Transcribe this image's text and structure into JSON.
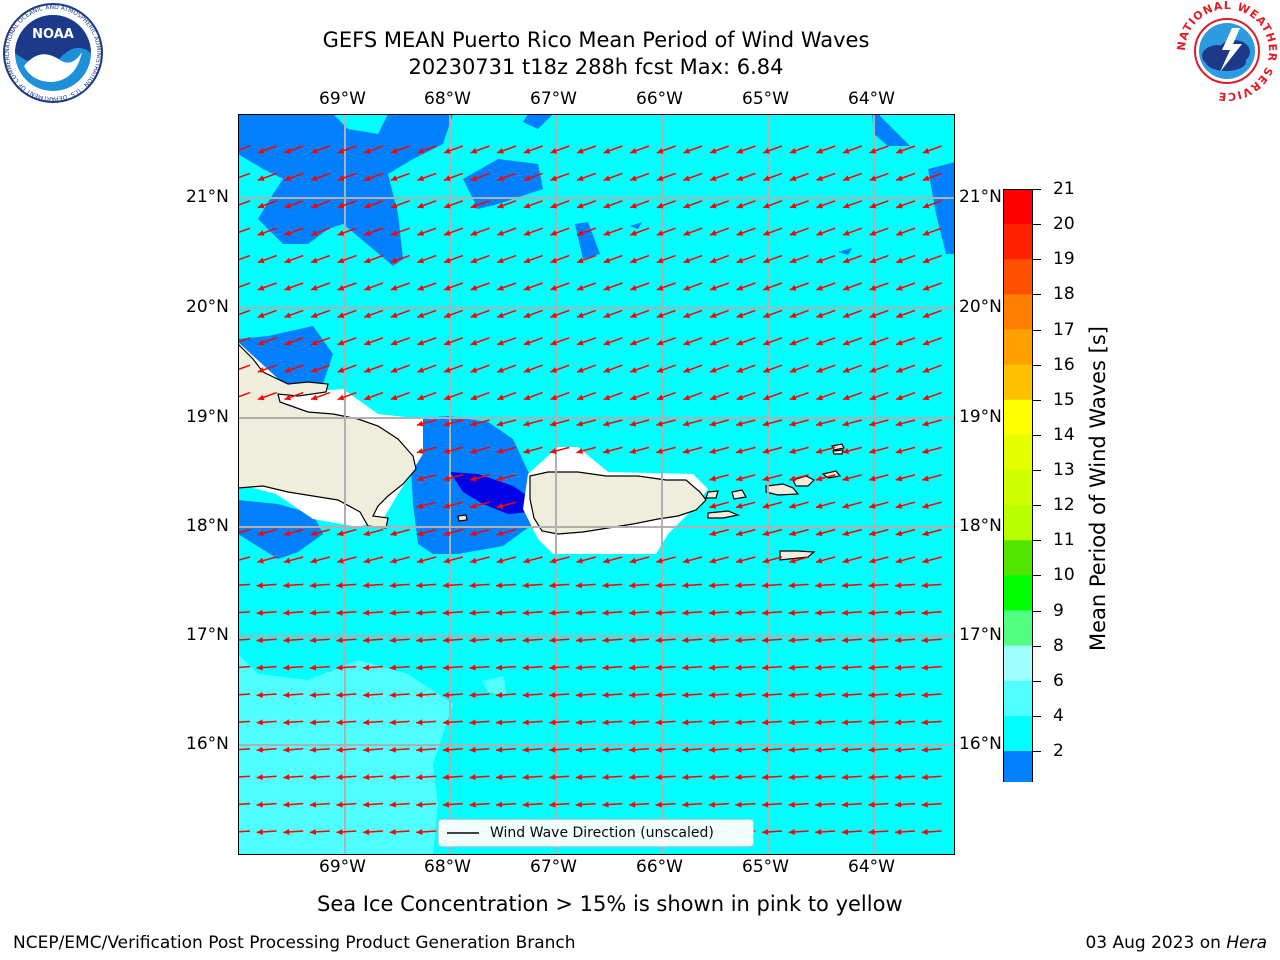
{
  "title": {
    "line1": "GEFS MEAN Puerto Rico Mean Period of Wind Waves",
    "line2": "20230731 t18z 288h fcst   Max: 6.84"
  },
  "map": {
    "lon_labels": [
      "69°W",
      "68°W",
      "67°W",
      "66°W",
      "65°W",
      "64°W"
    ],
    "lat_labels": [
      "21°N",
      "20°N",
      "19°N",
      "18°N",
      "17°N",
      "16°N"
    ],
    "legend": "Wind Wave Direction (unscaled)",
    "colors": {
      "ocean": "#00ffff",
      "band_2_4": "#0080ff",
      "band_below_2": "#0000e6",
      "band_6_8": "#50ffff",
      "land": "#efeedc",
      "arrow": "#ff0000"
    }
  },
  "colorbar": {
    "title": "Mean Period of Wind Waves [s]",
    "labels": [
      "21",
      "20",
      "19",
      "18",
      "17",
      "16",
      "15",
      "14",
      "13",
      "12",
      "11",
      "10",
      "9",
      "8",
      "6",
      "4",
      "2"
    ],
    "colors": [
      "#ff0000",
      "#ff2000",
      "#ff5000",
      "#ff8000",
      "#ffa000",
      "#ffc000",
      "#ffff00",
      "#e6ff00",
      "#d0ff00",
      "#b8ff00",
      "#50e600",
      "#00ff00",
      "#50ff80",
      "#a0ffff",
      "#50ffff",
      "#00ffff",
      "#0080ff"
    ],
    "extend_color": "#0000ff"
  },
  "note": "Sea Ice Concentration > 15% is shown in pink to yellow",
  "footer": {
    "left": "NCEP/EMC/Verification Post Processing Product Generation Branch",
    "date": "03 Aug 2023 on ",
    "machine": "Hera"
  },
  "logos": {
    "noaa": "NOAA",
    "noaa_ring": "NATIONAL OCEANIC AND ATMOSPHERIC ADMINISTRATION · U.S. DEPARTMENT OF COMMERCE",
    "nws_ring": "NATIONAL WEATHER SERVICE"
  }
}
